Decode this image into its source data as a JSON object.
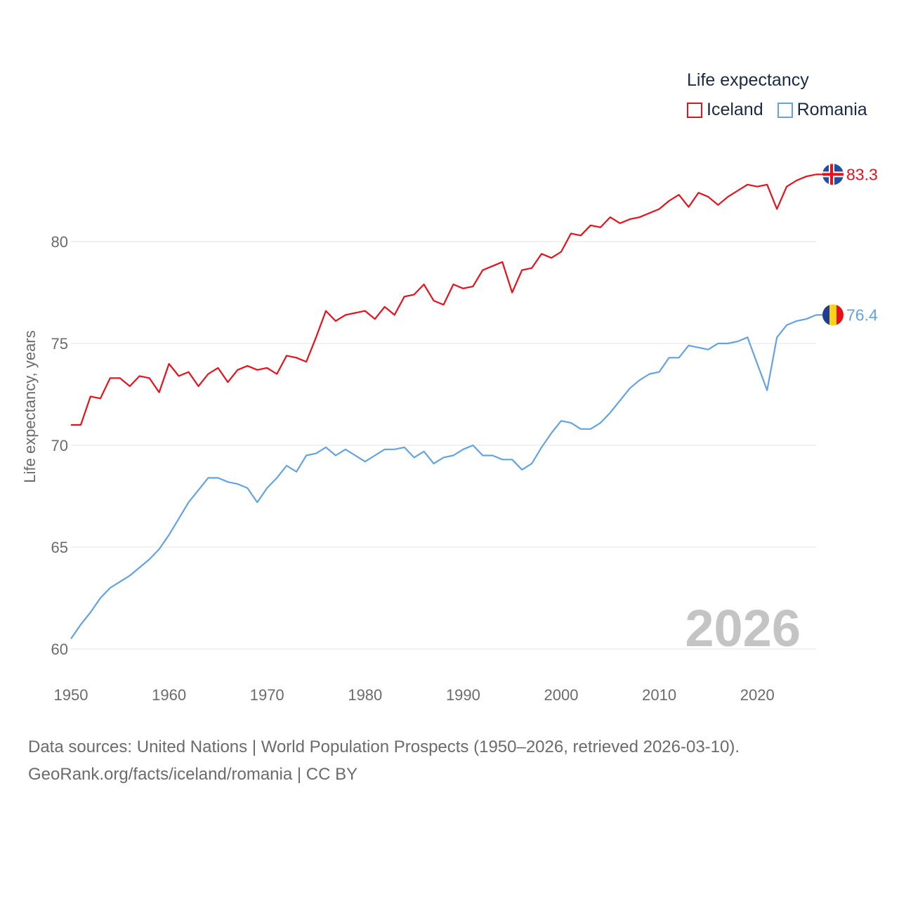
{
  "legend": {
    "title": "Life expectancy",
    "items": [
      {
        "label": "Iceland",
        "color": "#e8101a"
      },
      {
        "label": "Romania",
        "color": "#62a3e3"
      }
    ]
  },
  "footer": {
    "line1": "Data sources: United Nations | World Population Prospects (1950–2026, retrieved 2026-03-10).",
    "line2": "GeoRank.org/facts/iceland/romania | CC BY"
  },
  "chart_data": {
    "type": "line",
    "title": "Life expectancy",
    "xlabel": "",
    "ylabel": "Life expectancy, years",
    "xlim": [
      1950,
      2026
    ],
    "ylim": [
      60,
      85
    ],
    "yticks": [
      60,
      65,
      70,
      75,
      80
    ],
    "xticks": [
      1950,
      1960,
      1970,
      1980,
      1990,
      2000,
      2010,
      2020
    ],
    "year_label": "2026",
    "x": [
      1950,
      1951,
      1952,
      1953,
      1954,
      1955,
      1956,
      1957,
      1958,
      1959,
      1960,
      1961,
      1962,
      1963,
      1964,
      1965,
      1966,
      1967,
      1968,
      1969,
      1970,
      1971,
      1972,
      1973,
      1974,
      1975,
      1976,
      1977,
      1978,
      1979,
      1980,
      1981,
      1982,
      1983,
      1984,
      1985,
      1986,
      1987,
      1988,
      1989,
      1990,
      1991,
      1992,
      1993,
      1994,
      1995,
      1996,
      1997,
      1998,
      1999,
      2000,
      2001,
      2002,
      2003,
      2004,
      2005,
      2006,
      2007,
      2008,
      2009,
      2010,
      2011,
      2012,
      2013,
      2014,
      2015,
      2016,
      2017,
      2018,
      2019,
      2020,
      2021,
      2022,
      2023,
      2024,
      2025,
      2026
    ],
    "series": [
      {
        "name": "Iceland",
        "color": "#e8101a",
        "end_label": "83.3",
        "values": [
          71.0,
          71.0,
          72.4,
          72.3,
          73.3,
          73.3,
          72.9,
          73.4,
          73.3,
          72.6,
          74.0,
          73.4,
          73.6,
          72.9,
          73.5,
          73.8,
          73.1,
          73.7,
          73.9,
          73.7,
          73.8,
          73.5,
          74.4,
          74.3,
          74.1,
          75.3,
          76.6,
          76.1,
          76.4,
          76.5,
          76.6,
          76.2,
          76.8,
          76.4,
          77.3,
          77.4,
          77.9,
          77.1,
          76.9,
          77.9,
          77.7,
          77.8,
          78.6,
          78.8,
          79.0,
          77.5,
          78.6,
          78.7,
          79.4,
          79.2,
          79.5,
          80.4,
          80.3,
          80.8,
          80.7,
          81.2,
          80.9,
          81.1,
          81.2,
          81.4,
          81.6,
          82.0,
          82.3,
          81.7,
          82.4,
          82.2,
          81.8,
          82.2,
          82.5,
          82.8,
          82.7,
          82.8,
          81.6,
          82.7,
          83.0,
          83.2,
          83.3
        ]
      },
      {
        "name": "Romania",
        "color": "#62a3e3",
        "end_label": "76.4",
        "values": [
          60.5,
          61.2,
          61.8,
          62.5,
          63.0,
          63.3,
          63.6,
          64.0,
          64.4,
          64.9,
          65.6,
          66.4,
          67.2,
          67.8,
          68.4,
          68.4,
          68.2,
          68.1,
          67.9,
          67.2,
          67.9,
          68.4,
          69.0,
          68.7,
          69.5,
          69.6,
          69.9,
          69.5,
          69.8,
          69.5,
          69.2,
          69.5,
          69.8,
          69.8,
          69.9,
          69.4,
          69.7,
          69.1,
          69.4,
          69.5,
          69.8,
          70.0,
          69.5,
          69.5,
          69.3,
          69.3,
          68.8,
          69.1,
          69.9,
          70.6,
          71.2,
          71.1,
          70.8,
          70.8,
          71.1,
          71.6,
          72.2,
          72.8,
          73.2,
          73.5,
          73.6,
          74.3,
          74.3,
          74.9,
          74.8,
          74.7,
          75.0,
          75.0,
          75.1,
          75.3,
          74.0,
          72.7,
          75.3,
          75.9,
          76.1,
          76.2,
          76.4
        ]
      }
    ]
  }
}
